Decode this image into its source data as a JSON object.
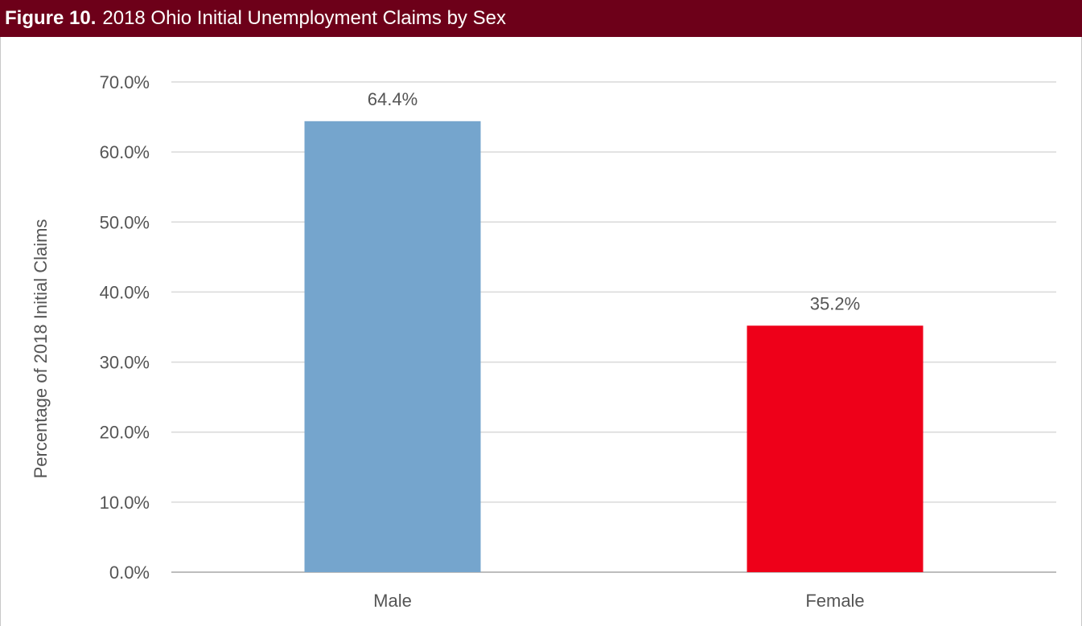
{
  "figure": {
    "label": "Figure 10.",
    "title": "2018 Ohio Initial Unemployment Claims by Sex"
  },
  "chart_data": {
    "type": "bar",
    "categories": [
      "Male",
      "Female"
    ],
    "values": [
      64.4,
      35.2
    ],
    "data_labels": [
      "64.4%",
      "35.2%"
    ],
    "colors": [
      "#75a5cd",
      "#ee0019"
    ],
    "ylabel": "Percentage of 2018 Initial Claims",
    "xlabel": "",
    "ylim": [
      0,
      70
    ],
    "yticks": [
      "0.0%",
      "10.0%",
      "20.0%",
      "30.0%",
      "40.0%",
      "50.0%",
      "60.0%",
      "70.0%"
    ],
    "ytick_values": [
      0,
      10,
      20,
      30,
      40,
      50,
      60,
      70
    ],
    "grid": true,
    "legend": "none"
  }
}
